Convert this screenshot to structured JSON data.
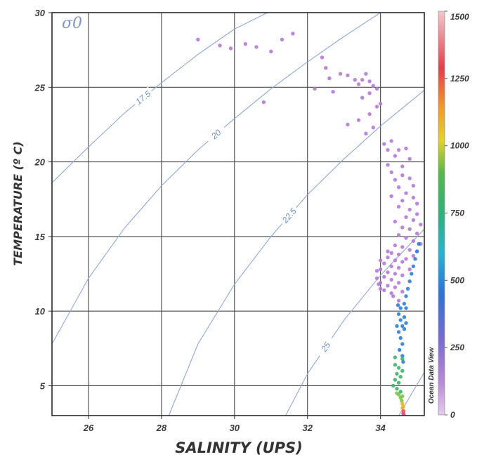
{
  "chart_data": {
    "type": "scatter",
    "xlabel": "SALINITY (UPS)",
    "ylabel": "TEMPERATURE (º C)",
    "xlim": [
      25,
      35.2
    ],
    "ylim": [
      3,
      30
    ],
    "xticks": [
      26,
      28,
      30,
      32,
      34
    ],
    "yticks": [
      5,
      10,
      15,
      20,
      25,
      30
    ],
    "grid": true,
    "density_label": "σ0",
    "contours": [
      {
        "label": "17.5",
        "points": [
          [
            25.0,
            18.6
          ],
          [
            26.0,
            21.0
          ],
          [
            27.0,
            23.3
          ],
          [
            28.0,
            25.3
          ],
          [
            29.0,
            27.2
          ],
          [
            30.0,
            28.9
          ],
          [
            30.9,
            30.0
          ]
        ]
      },
      {
        "label": "20",
        "points": [
          [
            25.0,
            7.8
          ],
          [
            26.0,
            12.2
          ],
          [
            27.0,
            15.6
          ],
          [
            28.0,
            18.4
          ],
          [
            29.0,
            20.8
          ],
          [
            30.0,
            22.9
          ],
          [
            31.0,
            24.9
          ],
          [
            32.0,
            26.7
          ],
          [
            33.0,
            28.4
          ],
          [
            34.0,
            30.0
          ]
        ]
      },
      {
        "label": "22.5",
        "points": [
          [
            28.2,
            3.0
          ],
          [
            29.0,
            7.8
          ],
          [
            30.0,
            11.8
          ],
          [
            31.0,
            15.0
          ],
          [
            32.0,
            17.8
          ],
          [
            33.0,
            20.2
          ],
          [
            34.0,
            22.4
          ],
          [
            35.2,
            24.8
          ]
        ]
      },
      {
        "label": "25",
        "points": [
          [
            31.4,
            3.0
          ],
          [
            32.0,
            5.8
          ],
          [
            33.0,
            9.4
          ],
          [
            34.0,
            12.4
          ],
          [
            35.2,
            15.5
          ]
        ]
      },
      {
        "label": "",
        "points": [
          [
            34.5,
            3.0
          ],
          [
            35.2,
            5.9
          ]
        ]
      }
    ],
    "colorbar": {
      "title": "Ocean Data View",
      "range": [
        0,
        1500
      ],
      "ticks": [
        0,
        250,
        500,
        750,
        1000,
        1250,
        1500
      ]
    },
    "points_depth_unit": "third value = colorbar value",
    "points": [
      [
        29.0,
        28.2,
        0
      ],
      [
        29.6,
        27.8,
        0
      ],
      [
        29.9,
        27.6,
        0
      ],
      [
        30.3,
        27.9,
        0
      ],
      [
        30.6,
        27.7,
        0
      ],
      [
        31.0,
        27.4,
        0
      ],
      [
        31.3,
        28.2,
        0
      ],
      [
        31.6,
        28.6,
        0
      ],
      [
        30.8,
        24.0,
        0
      ],
      [
        32.4,
        27.0,
        0
      ],
      [
        32.5,
        26.3,
        0
      ],
      [
        32.6,
        25.6,
        0
      ],
      [
        32.9,
        25.9,
        0
      ],
      [
        32.2,
        24.9,
        0
      ],
      [
        32.7,
        24.7,
        0
      ],
      [
        33.1,
        25.8,
        0
      ],
      [
        33.3,
        25.5,
        0
      ],
      [
        33.4,
        25.2,
        0
      ],
      [
        33.6,
        25.9,
        0
      ],
      [
        33.5,
        25.5,
        0
      ],
      [
        33.7,
        25.4,
        0
      ],
      [
        33.8,
        25.1,
        0
      ],
      [
        33.7,
        24.6,
        0
      ],
      [
        33.9,
        24.9,
        0
      ],
      [
        33.5,
        24.3,
        0
      ],
      [
        33.9,
        23.7,
        0
      ],
      [
        33.7,
        23.2,
        0
      ],
      [
        33.4,
        22.8,
        0
      ],
      [
        33.8,
        22.3,
        0
      ],
      [
        33.6,
        21.9,
        0
      ],
      [
        34.0,
        23.9,
        0
      ],
      [
        33.1,
        22.5,
        0
      ],
      [
        34.1,
        21.2,
        0
      ],
      [
        34.2,
        20.8,
        0
      ],
      [
        34.3,
        21.4,
        0
      ],
      [
        34.5,
        20.8,
        0
      ],
      [
        34.7,
        20.9,
        0
      ],
      [
        34.4,
        20.4,
        0
      ],
      [
        34.8,
        20.2,
        0
      ],
      [
        34.6,
        19.7,
        0
      ],
      [
        34.3,
        19.3,
        0
      ],
      [
        34.2,
        19.8,
        0
      ],
      [
        34.6,
        19.1,
        0
      ],
      [
        34.4,
        18.8,
        0
      ],
      [
        34.8,
        18.9,
        0
      ],
      [
        34.9,
        18.4,
        0
      ],
      [
        34.5,
        18.3,
        0
      ],
      [
        34.7,
        17.9,
        0
      ],
      [
        34.3,
        17.7,
        0
      ],
      [
        34.9,
        17.6,
        0
      ],
      [
        34.6,
        17.4,
        0
      ],
      [
        35.0,
        17.2,
        0
      ],
      [
        34.5,
        17.0,
        0
      ],
      [
        34.8,
        16.8,
        0
      ],
      [
        35.0,
        16.5,
        0
      ],
      [
        34.7,
        16.3,
        0
      ],
      [
        34.9,
        16.1,
        0
      ],
      [
        34.4,
        16.0,
        0
      ],
      [
        35.1,
        15.8,
        0
      ],
      [
        34.6,
        15.6,
        0
      ],
      [
        34.8,
        15.5,
        0
      ],
      [
        35.0,
        15.2,
        0
      ],
      [
        34.5,
        15.1,
        0
      ],
      [
        34.7,
        14.9,
        0
      ],
      [
        34.9,
        14.7,
        0
      ],
      [
        35.1,
        14.5,
        0
      ],
      [
        34.4,
        14.4,
        0
      ],
      [
        34.6,
        14.3,
        0
      ],
      [
        34.8,
        14.1,
        0
      ],
      [
        35.0,
        14.0,
        0
      ],
      [
        34.3,
        13.9,
        0
      ],
      [
        34.5,
        13.8,
        0
      ],
      [
        34.2,
        13.6,
        0
      ],
      [
        34.4,
        13.4,
        0
      ],
      [
        34.6,
        13.3,
        0
      ],
      [
        34.1,
        13.2,
        0
      ],
      [
        34.3,
        13.0,
        0
      ],
      [
        34.5,
        12.9,
        0
      ],
      [
        34.0,
        12.8,
        0
      ],
      [
        34.2,
        12.6,
        0
      ],
      [
        34.4,
        12.5,
        0
      ],
      [
        34.1,
        12.3,
        0
      ],
      [
        33.9,
        12.2,
        0
      ],
      [
        34.3,
        12.1,
        0
      ],
      [
        34.0,
        11.9,
        0
      ],
      [
        34.2,
        11.7,
        0
      ],
      [
        34.4,
        11.6,
        0
      ],
      [
        34.1,
        11.4,
        0
      ],
      [
        34.3,
        11.2,
        0
      ],
      [
        34.0,
        11.5,
        0
      ],
      [
        34.5,
        11.9,
        0
      ],
      [
        34.6,
        12.4,
        0
      ],
      [
        34.7,
        13.5,
        0
      ],
      [
        34.8,
        12.8,
        0
      ],
      [
        34.9,
        13.7,
        0
      ],
      [
        33.9,
        12.7,
        0
      ],
      [
        34.0,
        13.4,
        0
      ],
      [
        34.2,
        14.0,
        0
      ],
      [
        33.95,
        11.8,
        0
      ],
      [
        34.35,
        11.0,
        0
      ],
      [
        34.5,
        10.7,
        0
      ],
      [
        34.6,
        11.3,
        0
      ],
      [
        34.55,
        10.2,
        250
      ],
      [
        34.65,
        10.5,
        250
      ],
      [
        34.7,
        11.0,
        250
      ],
      [
        34.75,
        11.5,
        250
      ],
      [
        34.8,
        12.0,
        250
      ],
      [
        34.85,
        12.5,
        250
      ],
      [
        34.9,
        13.0,
        250
      ],
      [
        34.95,
        13.5,
        250
      ],
      [
        35.0,
        14.0,
        250
      ],
      [
        35.05,
        14.5,
        250
      ],
      [
        34.5,
        9.8,
        250
      ],
      [
        34.55,
        9.4,
        250
      ],
      [
        34.6,
        9.0,
        250
      ],
      [
        34.5,
        8.6,
        250
      ],
      [
        34.55,
        8.2,
        250
      ],
      [
        34.6,
        7.8,
        250
      ],
      [
        34.65,
        9.6,
        250
      ],
      [
        34.7,
        9.2,
        250
      ],
      [
        34.45,
        9.0,
        250
      ],
      [
        34.52,
        7.4,
        250
      ],
      [
        34.6,
        7.0,
        250
      ],
      [
        34.65,
        8.8,
        250
      ],
      [
        34.7,
        10.2,
        250
      ],
      [
        34.48,
        10.4,
        250
      ],
      [
        34.62,
        6.6,
        250
      ],
      [
        34.5,
        6.2,
        500
      ],
      [
        34.45,
        5.8,
        500
      ],
      [
        34.55,
        5.6,
        500
      ],
      [
        34.4,
        5.4,
        500
      ],
      [
        34.5,
        5.2,
        500
      ],
      [
        34.6,
        6.0,
        500
      ],
      [
        34.4,
        6.4,
        500
      ],
      [
        34.35,
        5.0,
        500
      ],
      [
        34.45,
        4.8,
        500
      ],
      [
        34.55,
        4.6,
        500
      ],
      [
        34.6,
        6.8,
        500
      ],
      [
        34.4,
        6.9,
        500
      ],
      [
        34.5,
        4.4,
        750
      ],
      [
        34.55,
        4.2,
        750
      ],
      [
        34.6,
        4.3,
        750
      ],
      [
        34.45,
        4.5,
        750
      ],
      [
        34.58,
        4.0,
        750
      ],
      [
        34.6,
        3.8,
        1000
      ],
      [
        34.62,
        3.6,
        1000
      ],
      [
        34.6,
        3.5,
        1000
      ],
      [
        34.63,
        3.3,
        1250
      ],
      [
        34.62,
        3.15,
        1250
      ],
      [
        34.64,
        3.05,
        1250
      ]
    ]
  }
}
